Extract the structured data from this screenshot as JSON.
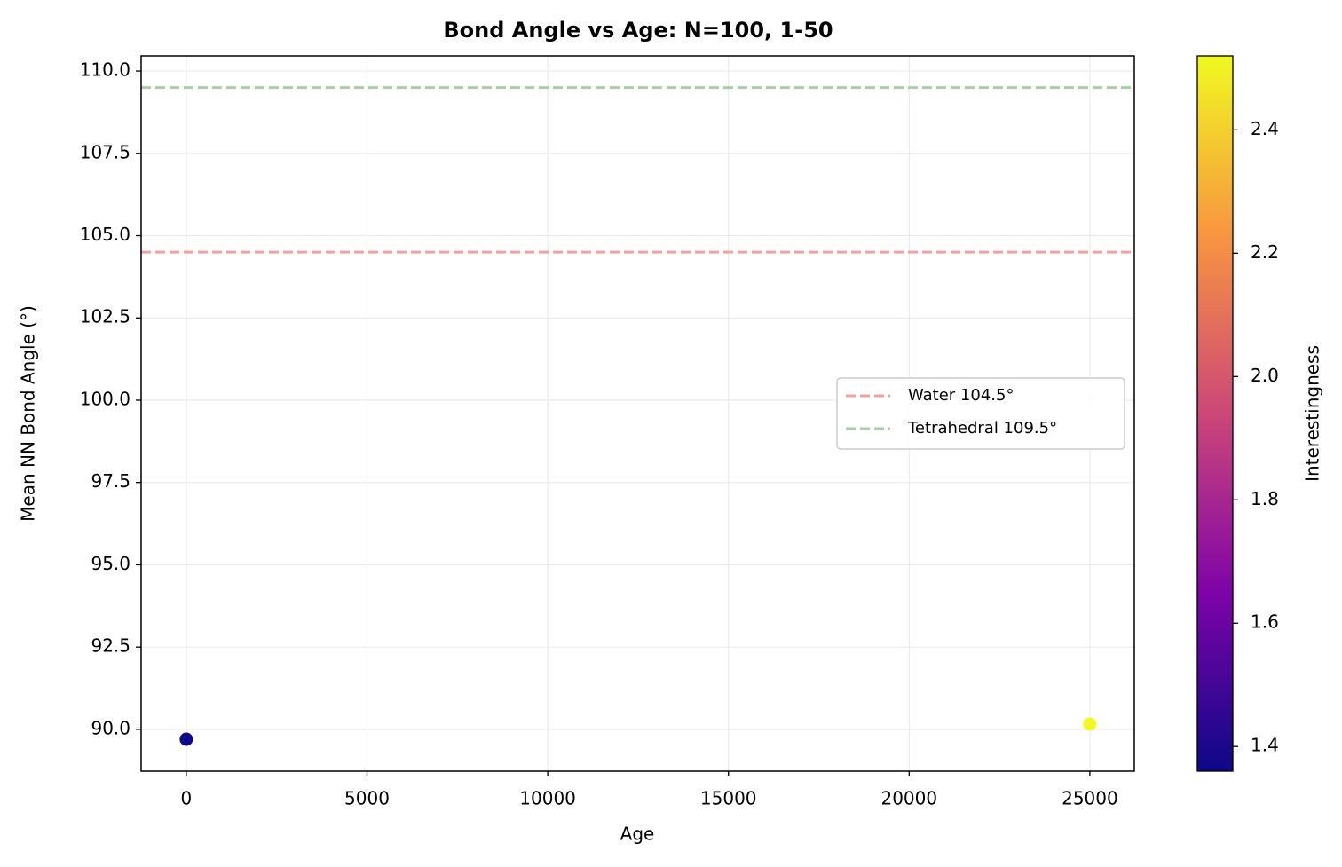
{
  "chart_data": {
    "type": "scatter",
    "title": "Bond Angle vs Age: N=100, 1-50",
    "xlabel": "Age",
    "ylabel": "Mean NN Bond Angle (°)",
    "x": [
      0,
      25000
    ],
    "series": [
      {
        "values": [
          89.7,
          90.16
        ],
        "color_values": [
          1.36,
          2.52
        ]
      }
    ],
    "cmap": "plasma",
    "colorbar_label": "Interestingness",
    "clim": [
      1.36,
      2.52
    ],
    "cticks": [
      1.4,
      1.6,
      1.8,
      {
        "value": 2,
        "label": "2.0"
      },
      2.2,
      2.4
    ],
    "hlines": [
      {
        "value": 104.5,
        "label": "Water 104.5°",
        "color": "#f4a0a0"
      },
      {
        "value": 109.5,
        "label": "Tetrahedral 109.5°",
        "color": "#a3d4a3"
      }
    ],
    "xlim": [
      -1250,
      26230
    ],
    "ylim": [
      88.73,
      110.46
    ],
    "xticks": [
      0,
      5000,
      10000,
      15000,
      20000,
      25000
    ],
    "yticks": [
      {
        "value": 90,
        "label": "90.0"
      },
      92.5,
      {
        "value": 95,
        "label": "95.0"
      },
      97.5,
      {
        "value": 100,
        "label": "100.0"
      },
      102.5,
      {
        "value": 105,
        "label": "105.0"
      },
      107.5,
      {
        "value": 110,
        "label": "110.0"
      }
    ],
    "grid": true,
    "legend": "right"
  }
}
